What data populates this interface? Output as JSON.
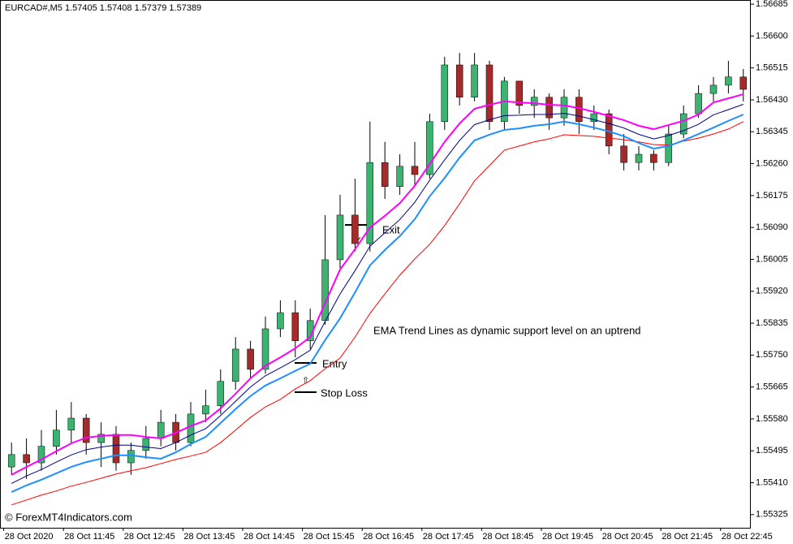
{
  "chart_data": {
    "type": "candlestick",
    "title": "EURCAD#,M5  1.57405 1.57408 1.57379 1.57389",
    "watermark": "© ForexMT4Indicators.com",
    "annotations": [
      "EMA Trend Lines as dynamic support level on an uptrend",
      "Exit",
      "Entry",
      "Stop Loss"
    ],
    "up_color": "#3cb371",
    "down_color": "#a52a2a",
    "categories": [
      null,
      "28 Oct 2020",
      null,
      null,
      null,
      "28 Oct 11:45",
      null,
      null,
      null,
      "28 Oct 12:45",
      null,
      null,
      null,
      "28 Oct 13:45",
      null,
      null,
      null,
      "28 Oct 14:45",
      null,
      null,
      null,
      "28 Oct 15:45",
      null,
      null,
      null,
      "28 Oct 16:45",
      null,
      null,
      null,
      "28 Oct 17:45",
      null,
      null,
      null,
      "28 Oct 18:45",
      null,
      null,
      null,
      "28 Oct 19:45",
      null,
      null,
      null,
      "28 Oct 20:45",
      null,
      null,
      null,
      "28 Oct 21:45",
      null,
      null,
      null,
      "28 Oct 22:45"
    ],
    "open": [
      1.55452,
      1.55485,
      1.55463,
      1.55507,
      1.5555,
      1.55582,
      1.55517,
      1.55539,
      1.55463,
      1.55496,
      1.55528,
      1.55571,
      1.55517,
      1.55593,
      1.55615,
      1.5568,
      1.55766,
      1.55712,
      1.5582,
      1.55863,
      1.55788,
      1.55842,
      1.56004,
      1.56123,
      1.56047,
      1.56263,
      1.56199,
      1.56253,
      1.56231,
      1.56372,
      1.56523,
      1.56437,
      1.56523,
      1.56372,
      1.5648,
      1.56415,
      1.56437,
      1.56382,
      1.56437,
      1.56372,
      1.56393,
      1.56307,
      1.56263,
      1.56285,
      1.56263,
      1.56339,
      1.56393,
      1.56447,
      1.56469,
      1.56491
    ],
    "high": [
      1.55517,
      1.55528,
      1.5555,
      1.55604,
      1.55625,
      1.55593,
      1.55571,
      1.55561,
      1.55517,
      1.55561,
      1.55604,
      1.55593,
      1.55625,
      1.55658,
      1.55712,
      1.55798,
      1.55788,
      1.55853,
      1.55896,
      1.55896,
      1.55874,
      1.56123,
      1.56177,
      1.5622,
      1.56372,
      1.56318,
      1.56285,
      1.56318,
      1.56393,
      1.56545,
      1.56555,
      1.56555,
      1.56534,
      1.56491,
      1.5648,
      1.56458,
      1.56447,
      1.56458,
      1.56458,
      1.56415,
      1.56404,
      1.56339,
      1.56307,
      1.56296,
      1.56361,
      1.56415,
      1.56469,
      1.56491,
      1.56534,
      1.56512
    ],
    "low": [
      1.55431,
      1.5542,
      1.55442,
      1.55485,
      1.55517,
      1.55485,
      1.55452,
      1.55442,
      1.55431,
      1.55474,
      1.55507,
      1.55496,
      1.55507,
      1.55571,
      1.55593,
      1.55658,
      1.5569,
      1.55701,
      1.55798,
      1.55744,
      1.55766,
      1.55831,
      1.55982,
      1.56026,
      1.56026,
      1.56166,
      1.56177,
      1.56199,
      1.5622,
      1.5635,
      1.56415,
      1.56426,
      1.5635,
      1.5635,
      1.56393,
      1.56382,
      1.5635,
      1.56361,
      1.56339,
      1.5635,
      1.56285,
      1.56242,
      1.56242,
      1.56242,
      1.56253,
      1.56328,
      1.56382,
      1.56426,
      1.56447,
      1.56426
    ],
    "close": [
      1.55485,
      1.55463,
      1.55507,
      1.5555,
      1.55582,
      1.55517,
      1.55539,
      1.55463,
      1.55496,
      1.55528,
      1.55571,
      1.55517,
      1.55593,
      1.55615,
      1.5568,
      1.55766,
      1.55712,
      1.5582,
      1.55863,
      1.55788,
      1.55842,
      1.56004,
      1.56123,
      1.56047,
      1.56263,
      1.56199,
      1.56253,
      1.56231,
      1.56372,
      1.56523,
      1.56437,
      1.56523,
      1.56372,
      1.5648,
      1.56415,
      1.56437,
      1.56382,
      1.56437,
      1.56372,
      1.56393,
      1.56307,
      1.56263,
      1.56285,
      1.56263,
      1.56339,
      1.56393,
      1.56447,
      1.56469,
      1.56491,
      1.56458
    ],
    "lines": [
      {
        "color": "#ff0000",
        "width": 1,
        "values": [
          1.55351,
          1.55364,
          1.55377,
          1.55388,
          1.55401,
          1.55411,
          1.55422,
          1.55433,
          1.55442,
          1.5545,
          1.55461,
          1.55472,
          1.55481,
          1.55491,
          1.55517,
          1.5555,
          1.55584,
          1.55612,
          1.55632,
          1.5566,
          1.55682,
          1.55714,
          1.55742,
          1.55798,
          1.55861,
          1.55913,
          1.55963,
          1.56006,
          1.56045,
          1.56095,
          1.56153,
          1.56214,
          1.56255,
          1.56296,
          1.56307,
          1.56318,
          1.56326,
          1.56337,
          1.56335,
          1.56333,
          1.56328,
          1.56324,
          1.56318,
          1.56311,
          1.56309,
          1.5632,
          1.56328,
          1.56339,
          1.56352,
          1.56372
        ]
      },
      {
        "color": "#1e8fff",
        "width": 2,
        "values": [
          1.55385,
          1.55403,
          1.55418,
          1.55435,
          1.55452,
          1.55465,
          1.55474,
          1.55483,
          1.55483,
          1.55478,
          1.55474,
          1.55491,
          1.55513,
          1.55532,
          1.55569,
          1.55606,
          1.55641,
          1.55669,
          1.55688,
          1.55708,
          1.55727,
          1.5579,
          1.55848,
          1.55917,
          1.55989,
          1.5603,
          1.56067,
          1.56112,
          1.56173,
          1.56222,
          1.56276,
          1.56322,
          1.56337,
          1.5635,
          1.56354,
          1.56361,
          1.56365,
          1.56372,
          1.56365,
          1.56356,
          1.56346,
          1.56333,
          1.56315,
          1.563,
          1.56307,
          1.56322,
          1.56339,
          1.56356,
          1.56374,
          1.56391
        ]
      },
      {
        "color": "#00008b",
        "width": 1,
        "values": [
          1.55408,
          1.55428,
          1.55445,
          1.55465,
          1.55484,
          1.55498,
          1.55505,
          1.5551,
          1.5551,
          1.55505,
          1.55501,
          1.55517,
          1.55537,
          1.55554,
          1.55589,
          1.55627,
          1.55665,
          1.55695,
          1.55716,
          1.55738,
          1.55763,
          1.5584,
          1.55913,
          1.55975,
          1.5604,
          1.56076,
          1.56111,
          1.56157,
          1.56216,
          1.5627,
          1.56322,
          1.56364,
          1.56377,
          1.56388,
          1.56389,
          1.56391,
          1.56391,
          1.56394,
          1.56387,
          1.56377,
          1.56367,
          1.56355,
          1.56338,
          1.56326,
          1.56335,
          1.56348,
          1.56365,
          1.5639,
          1.56404,
          1.56418
        ]
      },
      {
        "color": "#ff00ff",
        "width": 2,
        "values": [
          1.55431,
          1.55452,
          1.55472,
          1.55494,
          1.55515,
          1.5553,
          1.55535,
          1.55537,
          1.55537,
          1.55532,
          1.55528,
          1.55543,
          1.55561,
          1.55576,
          1.55608,
          1.55647,
          1.55688,
          1.55721,
          1.55744,
          1.55768,
          1.55798,
          1.55889,
          1.55978,
          1.56032,
          1.5609,
          1.56121,
          1.56155,
          1.56201,
          1.56259,
          1.56318,
          1.56367,
          1.56406,
          1.56417,
          1.56426,
          1.56423,
          1.56421,
          1.56417,
          1.56415,
          1.56408,
          1.56398,
          1.56387,
          1.56376,
          1.56361,
          1.56352,
          1.56363,
          1.56374,
          1.56391,
          1.56423,
          1.56434,
          1.56445
        ]
      }
    ],
    "ylim": [
      1.5529,
      1.56696
    ],
    "yticks": [
      {
        "value": 1.56685,
        "label": "1.56685"
      },
      {
        "value": 1.566,
        "label": "1.56600"
      },
      {
        "value": 1.56515,
        "label": "1.56515"
      },
      {
        "value": 1.5643,
        "label": "1.56430"
      },
      {
        "value": 1.56345,
        "label": "1.56345"
      },
      {
        "value": 1.5626,
        "label": "1.56260"
      },
      {
        "value": 1.56175,
        "label": "1.56175"
      },
      {
        "value": 1.5609,
        "label": "1.56090"
      },
      {
        "value": 1.56005,
        "label": "1.56005"
      },
      {
        "value": 1.5592,
        "label": "1.55920"
      },
      {
        "value": 1.55835,
        "label": "1.55835"
      },
      {
        "value": 1.5575,
        "label": "1.55750"
      },
      {
        "value": 1.55665,
        "label": "1.55665"
      },
      {
        "value": 1.5558,
        "label": "1.55580"
      },
      {
        "value": 1.55495,
        "label": "1.55495"
      },
      {
        "value": 1.5541,
        "label": "1.55410"
      },
      {
        "value": 1.55325,
        "label": "1.55325"
      }
    ],
    "grid": false
  }
}
